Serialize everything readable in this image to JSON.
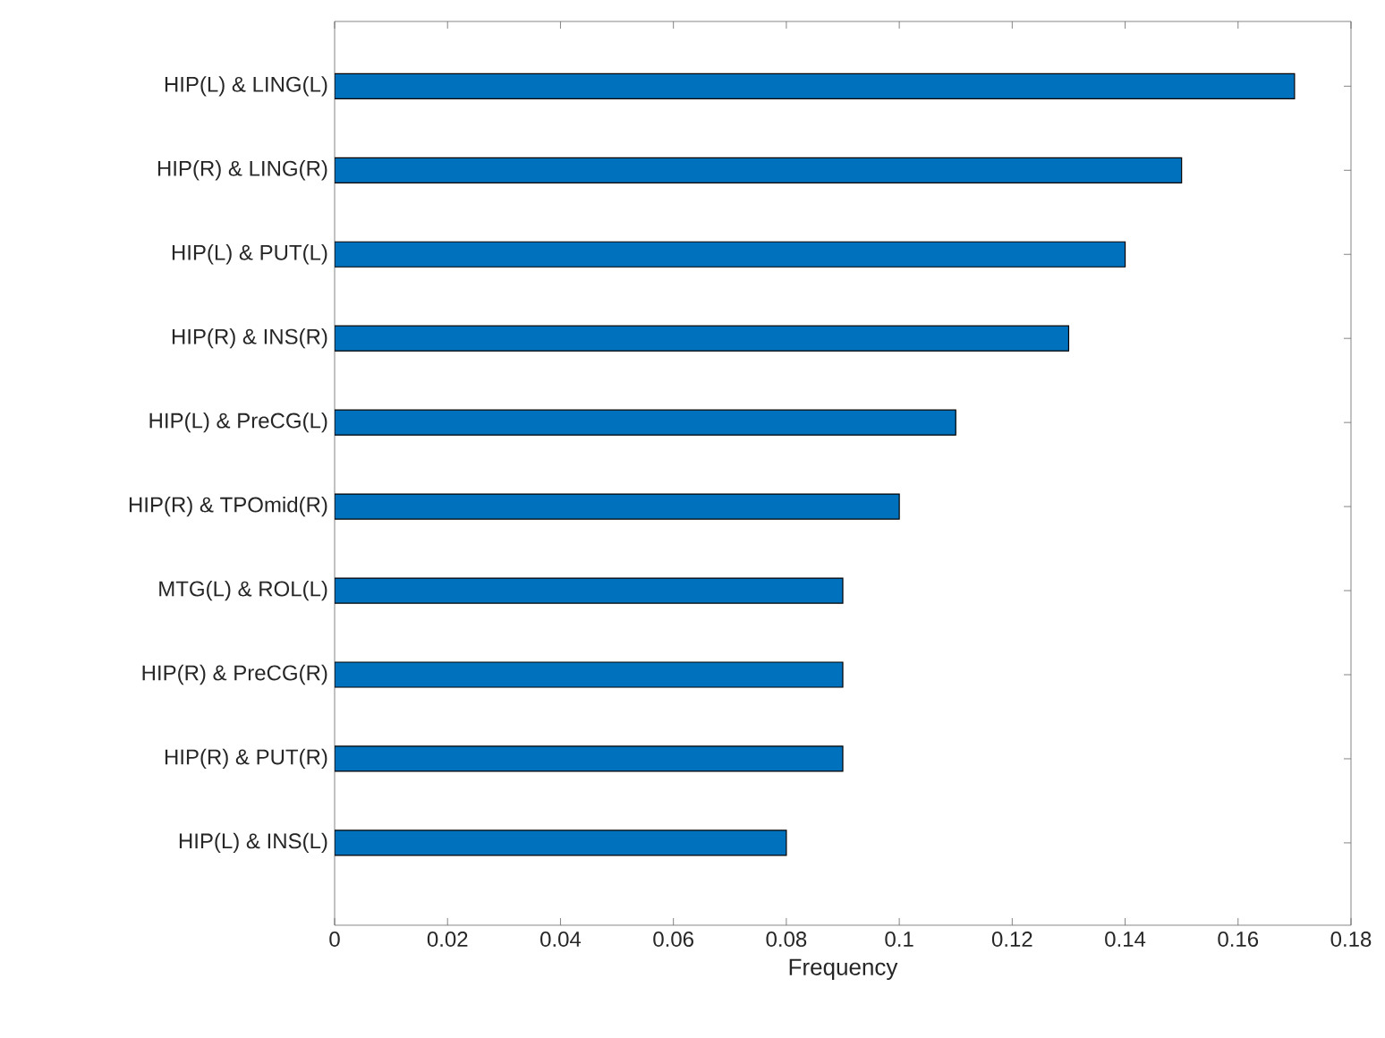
{
  "chart_data": {
    "type": "bar",
    "orientation": "horizontal",
    "categories": [
      "HIP(L) & LING(L)",
      "HIP(R) & LING(R)",
      "HIP(L) & PUT(L)",
      "HIP(R) & INS(R)",
      "HIP(L) & PreCG(L)",
      "HIP(R) & TPOmid(R)",
      "MTG(L) & ROL(L)",
      "HIP(R) & PreCG(R)",
      "HIP(R) & PUT(R)",
      "HIP(L) & INS(L)"
    ],
    "values": [
      0.17,
      0.15,
      0.14,
      0.13,
      0.11,
      0.1,
      0.09,
      0.09,
      0.09,
      0.08
    ],
    "color": "#0072bd",
    "xlabel": "Frequency",
    "xlim": [
      0,
      0.18
    ],
    "xticks": [
      0,
      0.02,
      0.04,
      0.06,
      0.08,
      0.1,
      0.12,
      0.14,
      0.16,
      0.18
    ]
  }
}
